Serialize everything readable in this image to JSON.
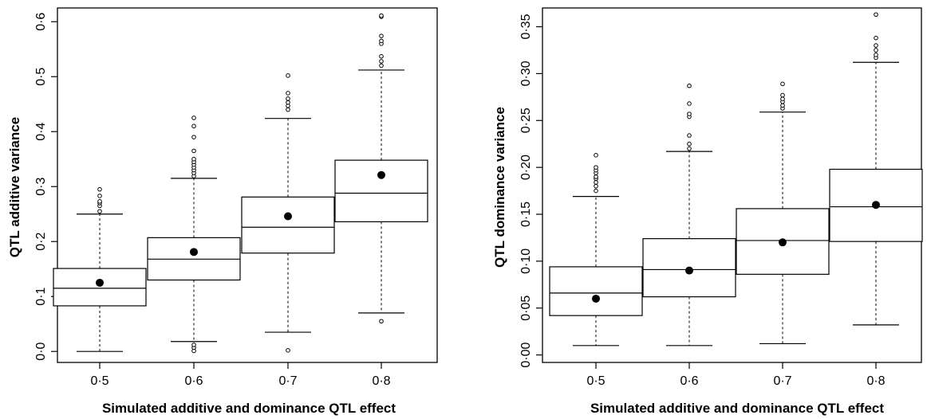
{
  "chart_data": [
    {
      "type": "boxplot",
      "title": "",
      "xlabel": "Simulated additive and dominance QTL effect",
      "ylabel": "QTL additive variance",
      "categories": [
        "0·5",
        "0·6",
        "0·7",
        "0·8"
      ],
      "ylim": [
        -0.02,
        0.625
      ],
      "yticks": [
        {
          "value": 0.0,
          "label": "0·0"
        },
        {
          "value": 0.1,
          "label": "0·1"
        },
        {
          "value": 0.2,
          "label": "0·2"
        },
        {
          "value": 0.3,
          "label": "0·3"
        },
        {
          "value": 0.4,
          "label": "0·4"
        },
        {
          "value": 0.5,
          "label": "0·5"
        },
        {
          "value": 0.6,
          "label": "0·6"
        }
      ],
      "boxes": [
        {
          "whisker_low": 0.0,
          "q1": 0.083,
          "median": 0.115,
          "q3": 0.151,
          "whisker_high": 0.25,
          "mean": 0.125,
          "outliers": [
            0.255,
            0.265,
            0.27,
            0.273,
            0.283,
            0.295
          ]
        },
        {
          "whisker_low": 0.018,
          "q1": 0.13,
          "median": 0.168,
          "q3": 0.207,
          "whisker_high": 0.315,
          "mean": 0.181,
          "outliers": [
            0.001,
            0.007,
            0.012,
            0.319,
            0.325,
            0.33,
            0.335,
            0.34,
            0.345,
            0.35,
            0.365,
            0.39,
            0.41,
            0.425
          ]
        },
        {
          "whisker_low": 0.035,
          "q1": 0.179,
          "median": 0.226,
          "q3": 0.281,
          "whisker_high": 0.424,
          "mean": 0.246,
          "outliers": [
            0.002,
            0.44,
            0.447,
            0.453,
            0.46,
            0.47,
            0.502
          ]
        },
        {
          "whisker_low": 0.07,
          "q1": 0.236,
          "median": 0.288,
          "q3": 0.348,
          "whisker_high": 0.512,
          "mean": 0.321,
          "outliers": [
            0.055,
            0.52,
            0.528,
            0.537,
            0.56,
            0.565,
            0.574,
            0.609,
            0.611
          ]
        }
      ]
    },
    {
      "type": "boxplot",
      "title": "",
      "xlabel": "Simulated additive and dominance QTL effect",
      "ylabel": "QTL dominance variance",
      "categories": [
        "0·5",
        "0·6",
        "0·7",
        "0·8"
      ],
      "ylim": [
        -0.008,
        0.37
      ],
      "yticks": [
        {
          "value": 0.0,
          "label": "0·00"
        },
        {
          "value": 0.05,
          "label": "0·05"
        },
        {
          "value": 0.1,
          "label": "0·10"
        },
        {
          "value": 0.15,
          "label": "0·15"
        },
        {
          "value": 0.2,
          "label": "0·20"
        },
        {
          "value": 0.25,
          "label": "0·25"
        },
        {
          "value": 0.3,
          "label": "0·30"
        },
        {
          "value": 0.35,
          "label": "0·35"
        }
      ],
      "boxes": [
        {
          "whisker_low": 0.01,
          "q1": 0.042,
          "median": 0.066,
          "q3": 0.094,
          "whisker_high": 0.169,
          "mean": 0.06,
          "outliers": [
            0.175,
            0.18,
            0.184,
            0.188,
            0.19,
            0.194,
            0.197,
            0.2,
            0.213
          ]
        },
        {
          "whisker_low": 0.01,
          "q1": 0.062,
          "median": 0.091,
          "q3": 0.124,
          "whisker_high": 0.217,
          "mean": 0.09,
          "outliers": [
            0.22,
            0.225,
            0.234,
            0.254,
            0.257,
            0.268,
            0.287
          ]
        },
        {
          "whisker_low": 0.012,
          "q1": 0.086,
          "median": 0.122,
          "q3": 0.156,
          "whisker_high": 0.259,
          "mean": 0.12,
          "outliers": [
            0.263,
            0.266,
            0.27,
            0.273,
            0.277,
            0.289
          ]
        },
        {
          "whisker_low": 0.032,
          "q1": 0.121,
          "median": 0.158,
          "q3": 0.198,
          "whisker_high": 0.312,
          "mean": 0.16,
          "outliers": [
            0.317,
            0.32,
            0.325,
            0.33,
            0.338,
            0.363
          ]
        }
      ]
    }
  ]
}
